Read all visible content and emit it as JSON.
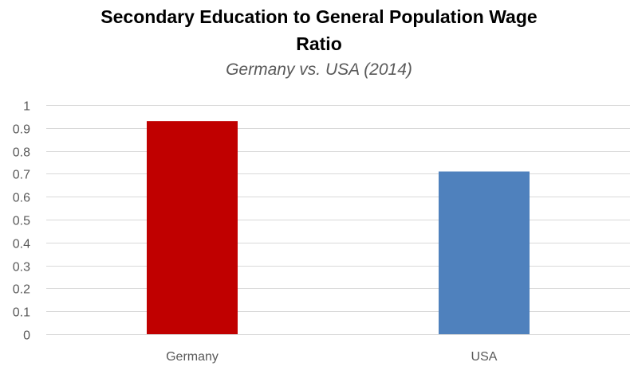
{
  "chart_data": {
    "type": "bar",
    "title": "Secondary Education to General Population Wage Ratio",
    "title_lines": [
      "Secondary Education to General Population Wage",
      "Ratio"
    ],
    "subtitle": "Germany vs. USA (2014)",
    "xlabel": "",
    "ylabel": "",
    "categories": [
      "Germany",
      "USA"
    ],
    "values": [
      0.93,
      0.71
    ],
    "bar_colors": [
      "#C00000",
      "#4F81BD"
    ],
    "ylim": [
      0,
      1
    ],
    "yticks": [
      0,
      0.1,
      0.2,
      0.3,
      0.4,
      0.5,
      0.6,
      0.7,
      0.8,
      0.9,
      1
    ],
    "ytick_labels": [
      "0",
      "0.1",
      "0.2",
      "0.3",
      "0.4",
      "0.5",
      "0.6",
      "0.7",
      "0.8",
      "0.9",
      "1"
    ],
    "grid": true,
    "grid_color": "#D9D9D9",
    "legend": "none"
  }
}
